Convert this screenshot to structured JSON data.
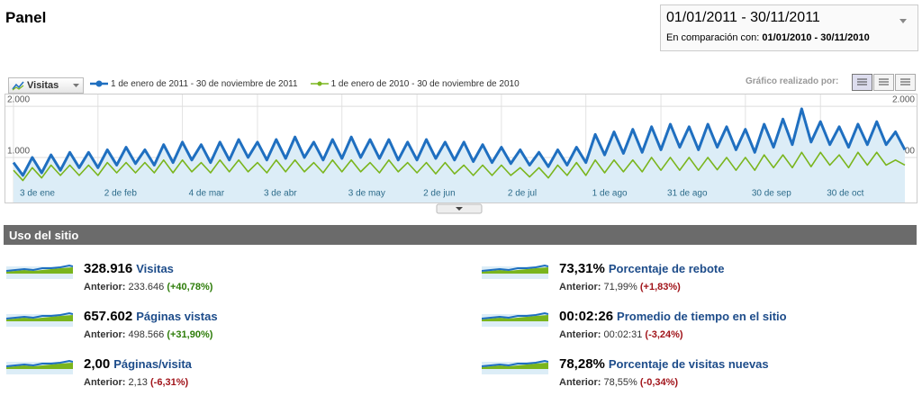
{
  "header": {
    "title": "Panel"
  },
  "date_range": {
    "current": "01/01/2011 - 30/11/2011",
    "comparison_label": "En comparación con:",
    "comparison": "01/01/2010 - 30/11/2010"
  },
  "toolbar": {
    "metric": "Visitas",
    "chart_by": "Gráfico realizado por:"
  },
  "chart_data": {
    "type": "line",
    "categories": [
      "3 de ene",
      null,
      null,
      null,
      null,
      null,
      null,
      null,
      null,
      "2 de feb",
      null,
      null,
      null,
      null,
      null,
      null,
      null,
      null,
      "4 de mar",
      null,
      null,
      null,
      null,
      null,
      null,
      null,
      "3 de abr",
      null,
      null,
      null,
      null,
      null,
      null,
      null,
      null,
      "3 de may",
      null,
      null,
      null,
      null,
      null,
      null,
      null,
      "2 de jun",
      null,
      null,
      null,
      null,
      null,
      null,
      null,
      null,
      "2 de jul",
      null,
      null,
      null,
      null,
      null,
      null,
      null,
      null,
      "1 de ago",
      null,
      null,
      null,
      null,
      null,
      null,
      null,
      "31 de ago",
      null,
      null,
      null,
      null,
      null,
      null,
      null,
      null,
      "30 de sep",
      null,
      null,
      null,
      null,
      null,
      null,
      null,
      "30 de oct",
      null,
      null,
      null,
      null,
      null,
      null,
      null,
      null,
      null
    ],
    "series": [
      {
        "name": "1 de enero de 2011 - 30 de noviembre de 2011",
        "color": "#1f6fc0",
        "area_color": "#dcedf7",
        "values": [
          900,
          650,
          1000,
          700,
          1050,
          750,
          1100,
          800,
          1100,
          800,
          1150,
          850,
          1200,
          880,
          1150,
          850,
          1250,
          900,
          1300,
          950,
          1250,
          900,
          1300,
          950,
          1350,
          1000,
          1300,
          950,
          1350,
          980,
          1400,
          1000,
          1300,
          950,
          1350,
          980,
          1400,
          1000,
          1350,
          980,
          1350,
          950,
          1300,
          950,
          1350,
          980,
          1300,
          950,
          1300,
          920,
          1250,
          900,
          1200,
          880,
          1150,
          850,
          1100,
          820,
          1150,
          850,
          1200,
          900,
          1450,
          1050,
          1500,
          1080,
          1550,
          1100,
          1600,
          1150,
          1650,
          1200,
          1600,
          1150,
          1650,
          1200,
          1600,
          1150,
          1550,
          1100,
          1650,
          1200,
          1750,
          1250,
          1950,
          1300,
          1700,
          1250,
          1600,
          1200,
          1650,
          1250,
          1700,
          1250,
          1500,
          1150
        ]
      },
      {
        "name": "1 de enero de 2010 - 30 de noviembre de 2010",
        "color": "#7ab51d",
        "values": [
          750,
          550,
          800,
          600,
          850,
          650,
          850,
          650,
          850,
          650,
          900,
          700,
          900,
          700,
          900,
          700,
          950,
          700,
          950,
          720,
          900,
          700,
          950,
          720,
          950,
          720,
          900,
          700,
          950,
          720,
          950,
          720,
          900,
          700,
          950,
          720,
          950,
          720,
          900,
          700,
          950,
          720,
          900,
          700,
          900,
          680,
          900,
          680,
          850,
          650,
          850,
          650,
          850,
          650,
          800,
          620,
          800,
          600,
          850,
          650,
          900,
          650,
          950,
          700,
          950,
          720,
          950,
          720,
          1000,
          750,
          1000,
          750,
          1000,
          750,
          1000,
          760,
          1000,
          750,
          1000,
          750,
          1050,
          800,
          1050,
          800,
          1100,
          820,
          1100,
          850,
          1050,
          800,
          1100,
          850,
          1100,
          850,
          950,
          850
        ]
      }
    ],
    "ylim": [
      120,
      2230
    ],
    "yticks": [
      {
        "value": 1000,
        "label": "1.000"
      },
      {
        "value": 2000,
        "label": "2.000"
      }
    ],
    "grid": true
  },
  "site_usage": {
    "title": "Uso del sitio",
    "previous_label": "Anterior:",
    "metrics": [
      {
        "value": "328.916",
        "label": "Visitas",
        "previous": "233.646",
        "change": "(+40,78%)",
        "change_color": "#2e7d0a"
      },
      {
        "value": "73,31%",
        "label": "Porcentaje de rebote",
        "previous": "71,99%",
        "change": "(+1,83%)",
        "change_color": "#a1141a"
      },
      {
        "value": "657.602",
        "label": "Páginas vistas",
        "previous": "498.566",
        "change": "(+31,90%)",
        "change_color": "#2e7d0a"
      },
      {
        "value": "00:02:26",
        "label": "Promedio de tiempo en el sitio",
        "previous": "00:02:31",
        "change": "(-3,24%)",
        "change_color": "#a1141a"
      },
      {
        "value": "2,00",
        "label": "Páginas/visita",
        "previous": "2,13",
        "change": "(-6,31%)",
        "change_color": "#a1141a"
      },
      {
        "value": "78,28%",
        "label": "Porcentaje de visitas nuevas",
        "previous": "78,55%",
        "change": "(-0,34%)",
        "change_color": "#a1141a"
      }
    ]
  }
}
